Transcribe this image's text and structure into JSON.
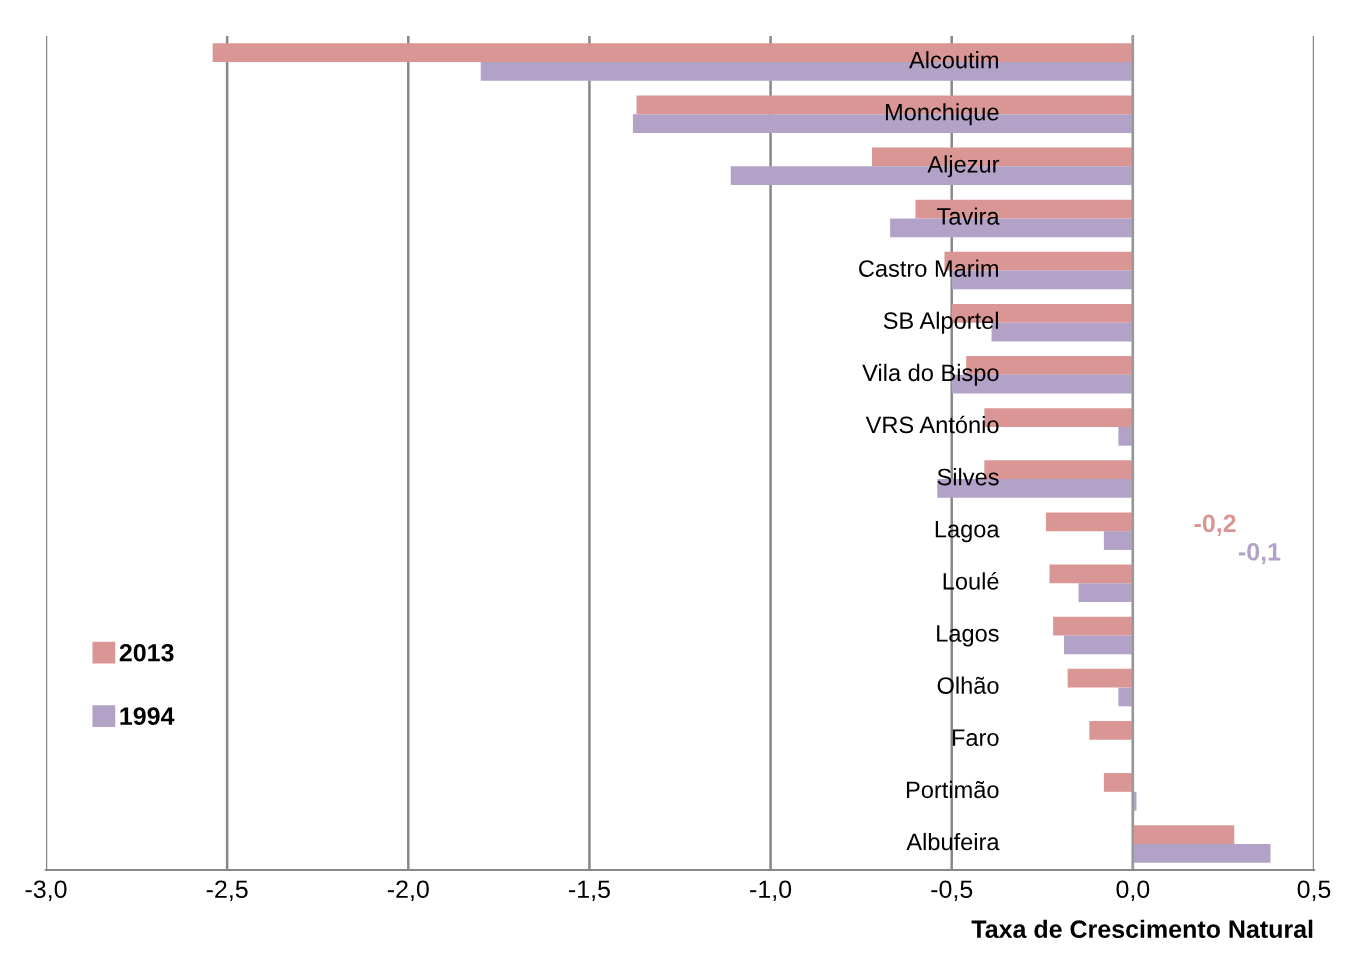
{
  "chart_data": {
    "type": "bar",
    "orientation": "horizontal",
    "xlabel": "Taxa de Crescimento Natural",
    "categories": [
      "Alcoutim",
      "Monchique",
      "Aljezur",
      "Tavira",
      "Castro Marim",
      "SB Alportel",
      "Vila do Bispo",
      "VRS António",
      "Silves",
      "Lagoa",
      "Loulé",
      "Lagos",
      "Olhão",
      "Faro",
      "Portimão",
      "Albufeira"
    ],
    "series": [
      {
        "name": "2013",
        "color": "#d99694",
        "values": [
          -2.54,
          -1.37,
          -0.72,
          -0.6,
          -0.52,
          -0.5,
          -0.46,
          -0.41,
          -0.41,
          -0.24,
          -0.23,
          -0.22,
          -0.18,
          -0.12,
          -0.08,
          0.28
        ]
      },
      {
        "name": "1994",
        "color": "#b3a2c7",
        "values": [
          -1.8,
          -1.38,
          -1.11,
          -0.67,
          -0.5,
          -0.39,
          -0.5,
          -0.04,
          -0.54,
          -0.08,
          -0.15,
          -0.19,
          -0.04,
          0,
          0.01,
          0.38
        ]
      }
    ],
    "xlim": [
      -3.0,
      0.5
    ],
    "xticks": [
      {
        "value": -3.0,
        "label": "-3,0"
      },
      {
        "value": -2.5,
        "label": "-2,5"
      },
      {
        "value": -2.0,
        "label": "-2,0"
      },
      {
        "value": -1.5,
        "label": "-1,5"
      },
      {
        "value": -1.0,
        "label": "-1,0"
      },
      {
        "value": -0.5,
        "label": "-0,5"
      },
      {
        "value": 0.0,
        "label": "0,0"
      },
      {
        "value": 0.5,
        "label": "0,5"
      }
    ],
    "grid": "x",
    "legend": "left",
    "annotations": [
      "-0,2",
      "-0,1"
    ]
  }
}
